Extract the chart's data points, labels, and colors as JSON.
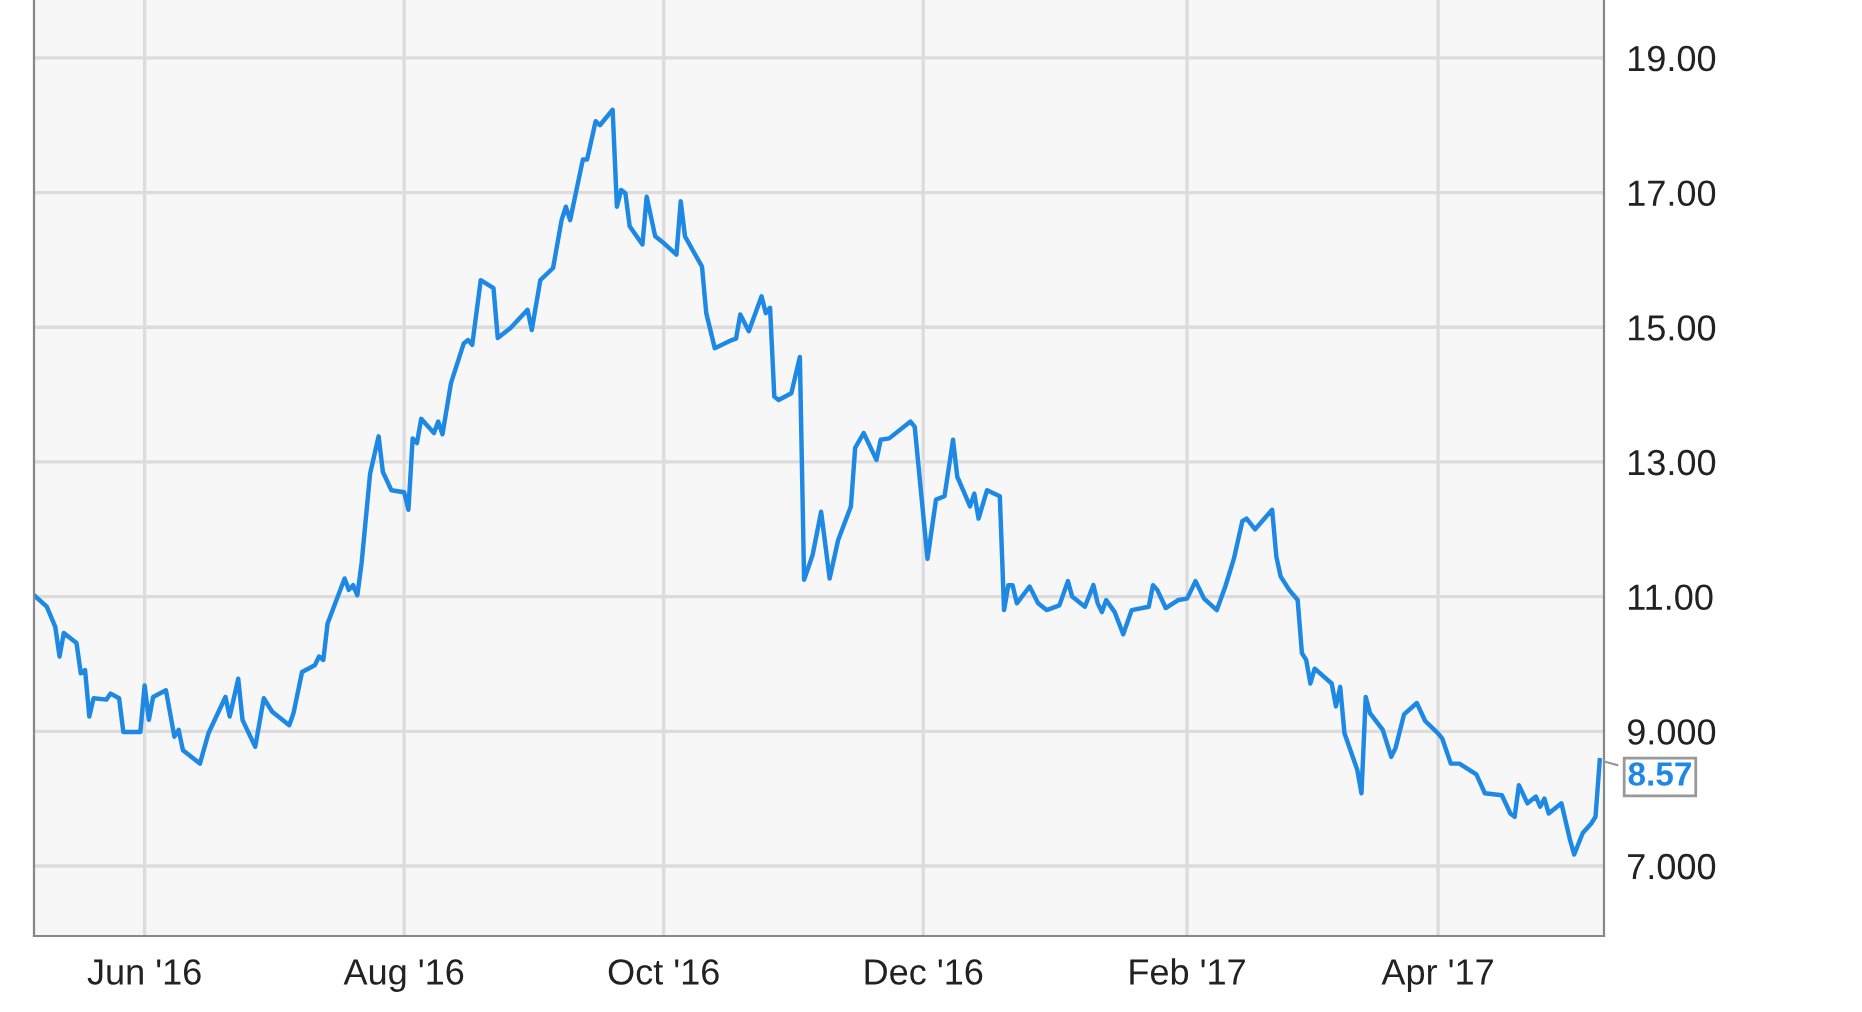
{
  "chart_data": {
    "type": "line",
    "x": [
      "2016-05-06",
      "2016-05-09",
      "2016-05-11",
      "2016-05-12",
      "2016-05-13",
      "2016-05-16",
      "2016-05-17",
      "2016-05-18",
      "2016-05-19",
      "2016-05-20",
      "2016-05-23",
      "2016-05-24",
      "2016-05-26",
      "2016-05-27",
      "2016-05-31",
      "2016-06-01",
      "2016-06-02",
      "2016-06-03",
      "2016-06-06",
      "2016-06-08",
      "2016-06-09",
      "2016-06-10",
      "2016-06-14",
      "2016-06-16",
      "2016-06-20",
      "2016-06-21",
      "2016-06-23",
      "2016-06-24",
      "2016-06-27",
      "2016-06-29",
      "2016-07-01",
      "2016-07-05",
      "2016-07-06",
      "2016-07-08",
      "2016-07-11",
      "2016-07-12",
      "2016-07-13",
      "2016-07-14",
      "2016-07-18",
      "2016-07-19",
      "2016-07-20",
      "2016-07-21",
      "2016-07-22",
      "2016-07-24",
      "2016-07-26",
      "2016-07-27",
      "2016-07-29",
      "2016-08-01",
      "2016-08-02",
      "2016-08-03",
      "2016-08-04",
      "2016-08-05",
      "2016-08-08",
      "2016-08-09",
      "2016-08-10",
      "2016-08-12",
      "2016-08-15",
      "2016-08-16",
      "2016-08-17",
      "2016-08-19",
      "2016-08-22",
      "2016-08-23",
      "2016-08-26",
      "2016-08-30",
      "2016-08-31",
      "2016-09-02",
      "2016-09-05",
      "2016-09-07",
      "2016-09-08",
      "2016-09-09",
      "2016-09-12",
      "2016-09-13",
      "2016-09-15",
      "2016-09-16",
      "2016-09-19",
      "2016-09-20",
      "2016-09-21",
      "2016-09-22",
      "2016-09-23",
      "2016-09-26",
      "2016-09-27",
      "2016-09-29",
      "2016-10-01",
      "2016-10-04",
      "2016-10-05",
      "2016-10-06",
      "2016-10-10",
      "2016-10-11",
      "2016-10-13",
      "2016-10-17",
      "2016-10-18",
      "2016-10-19",
      "2016-10-21",
      "2016-10-24",
      "2016-10-25",
      "2016-10-26",
      "2016-10-27",
      "2016-10-28",
      "2016-10-31",
      "2016-11-02",
      "2016-11-03",
      "2016-11-05",
      "2016-11-07",
      "2016-11-09",
      "2016-11-11",
      "2016-11-14",
      "2016-11-15",
      "2016-11-17",
      "2016-11-20",
      "2016-11-21",
      "2016-11-23",
      "2016-11-28",
      "2016-11-29",
      "2016-12-02",
      "2016-12-04",
      "2016-12-06",
      "2016-12-08",
      "2016-12-09",
      "2016-12-11",
      "2016-12-12",
      "2016-12-13",
      "2016-12-14",
      "2016-12-16",
      "2016-12-19",
      "2016-12-20",
      "2016-12-21",
      "2016-12-22",
      "2016-12-23",
      "2016-12-26",
      "2016-12-28",
      "2016-12-30",
      "2017-01-02",
      "2017-01-04",
      "2017-01-05",
      "2017-01-08",
      "2017-01-10",
      "2017-01-11",
      "2017-01-12",
      "2017-01-13",
      "2017-01-15",
      "2017-01-17",
      "2017-01-19",
      "2017-01-23",
      "2017-01-24",
      "2017-01-25",
      "2017-01-27",
      "2017-01-30",
      "2017-02-01",
      "2017-02-03",
      "2017-02-05",
      "2017-02-08",
      "2017-02-10",
      "2017-02-12",
      "2017-02-14",
      "2017-02-15",
      "2017-02-17",
      "2017-02-21",
      "2017-02-22",
      "2017-02-23",
      "2017-02-25",
      "2017-02-27",
      "2017-02-28",
      "2017-03-01",
      "2017-03-02",
      "2017-03-03",
      "2017-03-07",
      "2017-03-08",
      "2017-03-09",
      "2017-03-10",
      "2017-03-13",
      "2017-03-14",
      "2017-03-15",
      "2017-03-16",
      "2017-03-19",
      "2017-03-21",
      "2017-03-22",
      "2017-03-24",
      "2017-03-27",
      "2017-03-29",
      "2017-04-01",
      "2017-04-02",
      "2017-04-04",
      "2017-04-06",
      "2017-04-10",
      "2017-04-12",
      "2017-04-16",
      "2017-04-18",
      "2017-04-19",
      "2017-04-20",
      "2017-04-22",
      "2017-04-24",
      "2017-04-25",
      "2017-04-26",
      "2017-04-27",
      "2017-04-30",
      "2017-05-02",
      "2017-05-03",
      "2017-05-05",
      "2017-05-07",
      "2017-05-08",
      "2017-05-09"
    ],
    "series": [
      {
        "color": "#1e88e5",
        "values": [
          11.02,
          10.85,
          10.55,
          10.11,
          10.46,
          10.31,
          9.86,
          9.91,
          9.22,
          9.49,
          9.47,
          9.56,
          9.49,
          8.99,
          8.99,
          9.68,
          9.17,
          9.51,
          9.61,
          8.92,
          9.02,
          8.72,
          8.52,
          8.97,
          9.51,
          9.22,
          9.78,
          9.17,
          8.77,
          9.49,
          9.29,
          9.09,
          9.27,
          9.88,
          9.98,
          10.11,
          10.06,
          10.6,
          11.27,
          11.1,
          11.17,
          11.02,
          11.5,
          12.83,
          13.38,
          12.85,
          12.58,
          12.55,
          12.29,
          13.35,
          13.28,
          13.64,
          13.43,
          13.6,
          13.41,
          14.17,
          14.76,
          14.81,
          14.74,
          15.7,
          15.58,
          14.84,
          14.99,
          15.26,
          14.96,
          15.7,
          15.88,
          16.59,
          16.79,
          16.59,
          17.49,
          17.49,
          18.06,
          18.0,
          18.23,
          16.79,
          17.04,
          16.99,
          16.5,
          16.23,
          16.94,
          16.35,
          16.25,
          16.08,
          16.87,
          16.35,
          15.9,
          15.21,
          14.69,
          14.81,
          14.83,
          15.19,
          14.94,
          15.46,
          15.21,
          15.29,
          13.97,
          13.92,
          14.02,
          14.56,
          11.25,
          11.62,
          12.26,
          11.27,
          11.84,
          12.34,
          13.21,
          13.43,
          13.03,
          13.33,
          13.35,
          13.6,
          13.52,
          11.56,
          12.44,
          12.49,
          13.33,
          12.78,
          12.49,
          12.34,
          12.53,
          12.16,
          12.58,
          12.49,
          10.8,
          11.17,
          11.17,
          10.9,
          11.15,
          10.9,
          10.8,
          10.87,
          11.23,
          11.0,
          10.85,
          11.17,
          10.9,
          10.77,
          10.95,
          10.77,
          10.44,
          10.8,
          10.85,
          11.17,
          11.1,
          10.83,
          10.95,
          10.97,
          11.23,
          10.97,
          10.8,
          11.15,
          11.56,
          12.12,
          12.16,
          12.0,
          12.29,
          11.59,
          11.3,
          11.1,
          10.95,
          10.16,
          10.06,
          9.71,
          9.93,
          9.71,
          9.37,
          9.66,
          8.97,
          8.43,
          8.08,
          9.51,
          9.27,
          9.02,
          8.62,
          8.75,
          9.25,
          9.42,
          9.15,
          8.97,
          8.89,
          8.52,
          8.52,
          8.36,
          8.08,
          8.05,
          7.78,
          7.73,
          8.2,
          7.93,
          8.03,
          7.88,
          8.0,
          7.78,
          7.93,
          7.39,
          7.17,
          7.49,
          7.63,
          7.73,
          8.57
        ]
      }
    ],
    "xlim": [
      "2016-05-06",
      "2017-05-10"
    ],
    "xticks": [
      {
        "value": "2016-06-01",
        "label": "Jun '16"
      },
      {
        "value": "2016-08-01",
        "label": "Aug '16"
      },
      {
        "value": "2016-10-01",
        "label": "Oct '16"
      },
      {
        "value": "2016-12-01",
        "label": "Dec '16"
      },
      {
        "value": "2017-02-01",
        "label": "Feb '17"
      },
      {
        "value": "2017-04-01",
        "label": "Apr '17"
      }
    ],
    "ylim": [
      5.96,
      19.86
    ],
    "yticks": [
      {
        "value": 7,
        "label": "7.000"
      },
      {
        "value": 9,
        "label": "9.000"
      },
      {
        "value": 11,
        "label": "11.00"
      },
      {
        "value": 13,
        "label": "13.00"
      },
      {
        "value": 15,
        "label": "15.00"
      },
      {
        "value": 17,
        "label": "17.00"
      },
      {
        "value": 19,
        "label": "19.00"
      }
    ],
    "annotations": [
      {
        "text": "8.57",
        "x": "2017-05-09",
        "y": 8.57
      }
    ],
    "grid": true,
    "legend": false,
    "marker": "none",
    "line_style": "solid"
  }
}
